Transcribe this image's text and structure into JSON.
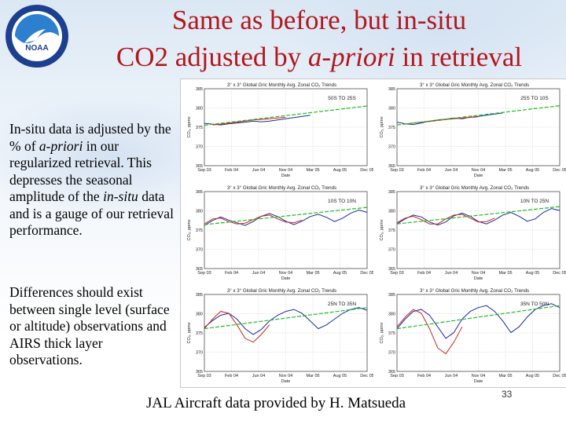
{
  "slide": {
    "title_line1": "Same as before, but in-situ",
    "title_line2_pre": "CO2 adjusted by ",
    "title_line2_italic": "a-priori",
    "title_line2_post": " in retrieval",
    "paragraph1": {
      "part1": "In-situ data is adjusted by the % of ",
      "part2_italic": "a-priori",
      "part3": " in our regularized retrieval. This depresses the seasonal amplitude of the ",
      "part4_italic": "in-situ",
      "part5": " data and is a gauge of our retrieval performance."
    },
    "paragraph2": "Differences should exist between single level (surface or altitude) observations and AIRS thick layer observations.",
    "credit": "JAL Aircraft data provided by H. Matsueda",
    "page_number": "33"
  },
  "logo": {
    "text": "NOAA"
  },
  "chart_data": [
    {
      "type": "line",
      "title": "3° x 3° Global Gric Monthly Avg. Zonal CO₂ Trends",
      "region_label": "50S TO 25S",
      "xlabel": "Date",
      "ylabel": "CO₂, ppmv",
      "x_ticks": [
        "Sep 03",
        "Feb 04",
        "Jun 04",
        "Nov 04",
        "Mar 05",
        "Aug 05",
        "Dec 05"
      ],
      "y_ticks": [
        365,
        370,
        375,
        380,
        385
      ],
      "ylim": [
        365,
        385
      ],
      "series": [
        {
          "color": "#1a2a9c",
          "x": [
            0,
            0.05,
            0.1,
            0.15,
            0.2,
            0.25,
            0.3,
            0.35,
            0.4,
            0.45,
            0.5,
            0.55,
            0.6,
            0.65
          ],
          "values": [
            376,
            375.8,
            375.6,
            375.9,
            376.1,
            376.3,
            376.6,
            376.4,
            376.6,
            376.9,
            377.2,
            377.5,
            377.8,
            378.1
          ]
        },
        {
          "color": "#cc2222",
          "x": [
            0.05,
            0.12,
            0.2,
            0.3,
            0.4,
            0.5
          ],
          "values": [
            375.6,
            375.9,
            376.3,
            376.9,
            377.2,
            377.6
          ]
        },
        {
          "color": "#22bb22",
          "dashed": true,
          "x": [
            0,
            1
          ],
          "values": [
            375.5,
            380.5
          ]
        }
      ]
    },
    {
      "type": "line",
      "title": "3° x 3° Global Gric Monthly Avg. Zonal CO₂ Trends",
      "region_label": "25S TO 10S",
      "xlabel": "Date",
      "ylabel": "CO₂, ppmv",
      "x_ticks": [
        "Sep 03",
        "Feb 04",
        "Jun 04",
        "Nov 04",
        "Mar 05",
        "Aug 05",
        "Dec 05"
      ],
      "y_ticks": [
        365,
        370,
        375,
        380,
        385
      ],
      "ylim": [
        365,
        385
      ],
      "series": [
        {
          "color": "#1a2a9c",
          "x": [
            0,
            0.05,
            0.1,
            0.15,
            0.2,
            0.25,
            0.3,
            0.35,
            0.4,
            0.45,
            0.5,
            0.55,
            0.6,
            0.65
          ],
          "values": [
            376.3,
            375.9,
            375.7,
            376.1,
            376.6,
            376.9,
            377.1,
            377.4,
            377.2,
            377.6,
            377.8,
            378.1,
            378.4,
            378.7
          ]
        },
        {
          "color": "#cc2222",
          "x": [
            0.05,
            0.12,
            0.2,
            0.3,
            0.4,
            0.5
          ],
          "values": [
            375.8,
            376.2,
            376.5,
            377,
            377.4,
            377.7
          ]
        },
        {
          "color": "#22bb22",
          "dashed": true,
          "x": [
            0,
            1
          ],
          "values": [
            375.6,
            380.6
          ]
        }
      ]
    },
    {
      "type": "line",
      "title": "3° x 3° Global Gric Monthly Avg. Zonal CO₂ Trends",
      "region_label": "10S TO 10N",
      "xlabel": "Date",
      "ylabel": "CO₂, ppmv",
      "x_ticks": [
        "Sep 03",
        "Feb 04",
        "Jun 04",
        "Nov 04",
        "Mar 05",
        "Aug 05",
        "Dec 05"
      ],
      "y_ticks": [
        365,
        370,
        375,
        380,
        385
      ],
      "ylim": [
        365,
        385
      ],
      "series": [
        {
          "color": "#1a2a9c",
          "x": [
            0,
            0.05,
            0.1,
            0.15,
            0.2,
            0.25,
            0.3,
            0.35,
            0.4,
            0.45,
            0.5,
            0.55,
            0.6,
            0.65,
            0.7,
            0.75,
            0.8,
            0.85,
            0.9,
            0.95,
            1
          ],
          "values": [
            376.2,
            377.5,
            378.4,
            377.6,
            376.9,
            376.2,
            377.2,
            378.6,
            379.3,
            378.5,
            377.3,
            376.4,
            377.3,
            378.5,
            379.1,
            378.3,
            377.2,
            378.1,
            379.4,
            380.2,
            379.6
          ]
        },
        {
          "color": "#cc2222",
          "x": [
            0,
            0.05,
            0.1,
            0.15,
            0.2,
            0.25,
            0.3,
            0.35,
            0.4,
            0.45,
            0.5,
            0.55,
            0.6
          ],
          "values": [
            376.6,
            377.9,
            378.1,
            377.2,
            376.6,
            376.8,
            377.7,
            378.6,
            378.9,
            377.9,
            377.1,
            376.9,
            377.6
          ]
        },
        {
          "color": "#22bb22",
          "dashed": true,
          "x": [
            0,
            1
          ],
          "values": [
            376.4,
            380.9
          ]
        }
      ]
    },
    {
      "type": "line",
      "title": "3° x 3° Global Gric Monthly Avg. Zonal CO₂ Trends",
      "region_label": "10N TO 25N",
      "xlabel": "Date",
      "ylabel": "CO₂, ppmv",
      "x_ticks": [
        "Sep 03",
        "Feb 04",
        "Jun 04",
        "Nov 04",
        "Mar 05",
        "Aug 05",
        "Dec 05"
      ],
      "y_ticks": [
        365,
        370,
        375,
        380,
        385
      ],
      "ylim": [
        365,
        385
      ],
      "series": [
        {
          "color": "#1a2a9c",
          "x": [
            0,
            0.05,
            0.1,
            0.15,
            0.2,
            0.25,
            0.3,
            0.35,
            0.4,
            0.45,
            0.5,
            0.55,
            0.6,
            0.65,
            0.7,
            0.75,
            0.8,
            0.85,
            0.9,
            0.95,
            1
          ],
          "values": [
            376.6,
            377.9,
            378.9,
            378.4,
            377.1,
            376.3,
            377.1,
            378.7,
            379.4,
            378.6,
            377.2,
            376.6,
            377.6,
            378.9,
            379.6,
            378.6,
            377.3,
            377.9,
            379.6,
            380.6,
            380.1
          ]
        },
        {
          "color": "#cc2222",
          "x": [
            0,
            0.05,
            0.1,
            0.15,
            0.2,
            0.25,
            0.3,
            0.35,
            0.4,
            0.45,
            0.5,
            0.55,
            0.6
          ],
          "values": [
            376.9,
            378.1,
            378.6,
            377.7,
            376.6,
            376.6,
            377.9,
            378.9,
            379.1,
            378.1,
            377.1,
            377.2,
            378.1
          ]
        },
        {
          "color": "#22bb22",
          "dashed": true,
          "x": [
            0,
            1
          ],
          "values": [
            376.6,
            381.1
          ]
        }
      ]
    },
    {
      "type": "line",
      "title": "3° x 3° Global Gric Monthly Avg. Zonal CO₂ Trends",
      "region_label": "25N TO 35N",
      "xlabel": "Date",
      "ylabel": "CO₂, ppmv",
      "x_ticks": [
        "Sep 03",
        "Feb 04",
        "Jun 04",
        "Nov 04",
        "Mar 05",
        "Aug 05",
        "Dec 05"
      ],
      "y_ticks": [
        365,
        370,
        375,
        380,
        385
      ],
      "ylim": [
        365,
        385
      ],
      "series": [
        {
          "color": "#1a2a9c",
          "x": [
            0,
            0.05,
            0.1,
            0.15,
            0.2,
            0.25,
            0.3,
            0.35,
            0.4,
            0.45,
            0.5,
            0.55,
            0.6,
            0.65,
            0.7,
            0.75,
            0.8,
            0.85,
            0.9,
            0.95,
            1
          ],
          "values": [
            376.4,
            378.2,
            379.6,
            380.1,
            378.6,
            376.1,
            374.6,
            375.9,
            378.1,
            379.6,
            380.6,
            381.1,
            380.1,
            378.1,
            376.1,
            377.1,
            378.6,
            380.1,
            381.1,
            381.6,
            380.9
          ]
        },
        {
          "color": "#cc2222",
          "x": [
            0,
            0.05,
            0.1,
            0.15,
            0.2,
            0.25,
            0.3,
            0.35,
            0.4
          ],
          "values": [
            376.1,
            378.6,
            380.6,
            380.1,
            377.1,
            373.6,
            372.6,
            374.6,
            377.1
          ]
        },
        {
          "color": "#22bb22",
          "dashed": true,
          "x": [
            0,
            1
          ],
          "values": [
            376.1,
            381.6
          ]
        }
      ]
    },
    {
      "type": "line",
      "title": "3° x 3° Global Gric Monthly Avg. Zonal CO₂ Trends",
      "region_label": "35N TO 50N",
      "xlabel": "Date",
      "ylabel": "CO₂, ppmv",
      "x_ticks": [
        "Sep 03",
        "Feb 04",
        "Jun 04",
        "Nov 04",
        "Mar 05",
        "Aug 05",
        "Dec 05"
      ],
      "y_ticks": [
        365,
        370,
        375,
        380,
        385
      ],
      "ylim": [
        365,
        385
      ],
      "series": [
        {
          "color": "#1a2a9c",
          "x": [
            0,
            0.05,
            0.1,
            0.15,
            0.2,
            0.25,
            0.3,
            0.35,
            0.4,
            0.45,
            0.5,
            0.55,
            0.6,
            0.65,
            0.7,
            0.75,
            0.8,
            0.85,
            0.9,
            0.95,
            1
          ],
          "values": [
            376.1,
            378.6,
            380.6,
            381.1,
            379.6,
            376.6,
            373.6,
            375.1,
            378.6,
            380.6,
            381.6,
            382.1,
            380.6,
            378.1,
            375.1,
            376.6,
            379.1,
            381.1,
            382.1,
            382.6,
            381.6
          ]
        },
        {
          "color": "#cc2222",
          "x": [
            0,
            0.05,
            0.1,
            0.15,
            0.2,
            0.25,
            0.3,
            0.35,
            0.4
          ],
          "values": [
            376.6,
            379.1,
            381.1,
            380.1,
            376.1,
            371.1,
            369.6,
            372.6,
            376.6
          ]
        },
        {
          "color": "#22bb22",
          "dashed": true,
          "x": [
            0,
            1
          ],
          "values": [
            376.1,
            382.1
          ]
        }
      ]
    }
  ]
}
